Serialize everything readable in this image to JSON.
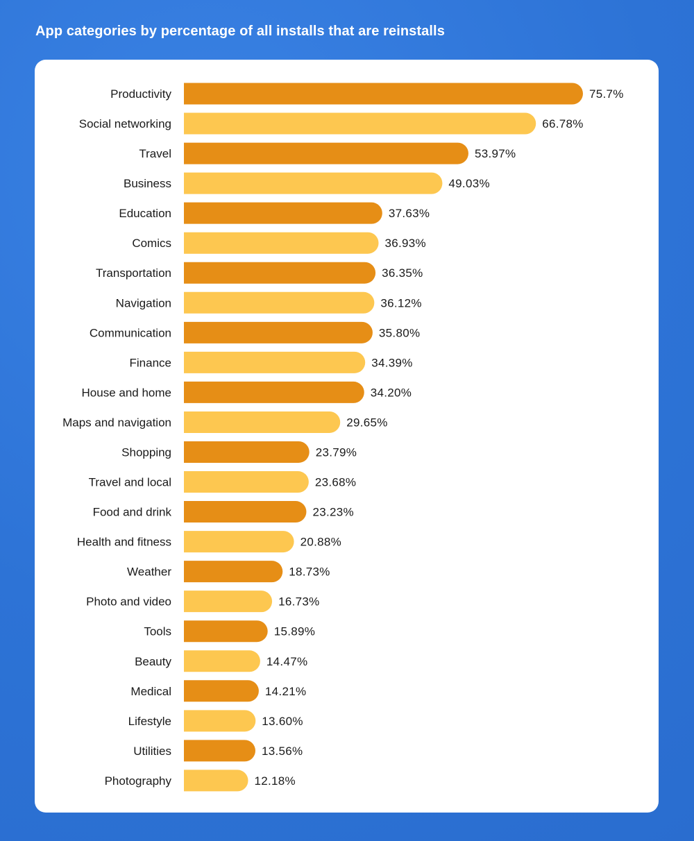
{
  "title": "App categories by percentage of all installs that are reinstalls",
  "colors": {
    "background": "#2f76d9",
    "card": "#ffffff",
    "bar_dark": "#e68e16",
    "bar_light": "#fdc750",
    "text": "#1a1a1a"
  },
  "chart_data": {
    "type": "bar",
    "orientation": "horizontal",
    "title": "App categories by percentage of all installs that are reinstalls",
    "xlabel": "",
    "ylabel": "",
    "xlim": [
      0,
      80
    ],
    "grid": false,
    "categories": [
      "Productivity",
      "Social networking",
      "Travel",
      "Business",
      "Education",
      "Comics",
      "Transportation",
      "Navigation",
      "Communication",
      "Finance",
      "House and home",
      "Maps and navigation",
      "Shopping",
      "Travel and local",
      "Food and drink",
      "Health and fitness",
      "Weather",
      "Photo and video",
      "Tools",
      "Beauty",
      "Medical",
      "Lifestyle",
      "Utilities",
      "Photography"
    ],
    "values": [
      75.7,
      66.78,
      53.97,
      49.03,
      37.63,
      36.93,
      36.35,
      36.12,
      35.8,
      34.39,
      34.2,
      29.65,
      23.79,
      23.68,
      23.23,
      20.88,
      18.73,
      16.73,
      15.89,
      14.47,
      14.21,
      13.6,
      13.56,
      12.18
    ],
    "value_labels": [
      "75.7%",
      "66.78%",
      "53.97%",
      "49.03%",
      "37.63%",
      "36.93%",
      "36.35%",
      "36.12%",
      "35.80%",
      "34.39%",
      "34.20%",
      "29.65%",
      "23.79%",
      "23.68%",
      "23.23%",
      "20.88%",
      "18.73%",
      "16.73%",
      "15.89%",
      "14.47%",
      "14.21%",
      "13.60%",
      "13.56%",
      "12.18%"
    ]
  }
}
